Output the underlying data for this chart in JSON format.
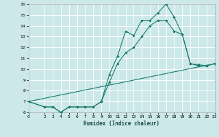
{
  "xlabel": "Humidex (Indice chaleur)",
  "background_color": "#cce8e8",
  "grid_color": "#ffffff",
  "line_color": "#1a7a6e",
  "xlim": [
    0,
    23
  ],
  "ylim": [
    6,
    16
  ],
  "xticks": [
    0,
    2,
    3,
    4,
    5,
    6,
    7,
    8,
    9,
    10,
    11,
    12,
    13,
    14,
    15,
    16,
    17,
    18,
    19,
    20,
    21,
    22,
    23
  ],
  "yticks": [
    6,
    7,
    8,
    9,
    10,
    11,
    12,
    13,
    14,
    15,
    16
  ],
  "series1_x": [
    0,
    2,
    3,
    4,
    5,
    6,
    7,
    8,
    9,
    10,
    11,
    12,
    13,
    14,
    15,
    16,
    17,
    18,
    19,
    20,
    21,
    22,
    23
  ],
  "series1_y": [
    7.0,
    6.5,
    6.5,
    6.0,
    6.5,
    6.5,
    6.5,
    6.5,
    7.0,
    9.5,
    11.2,
    13.5,
    13.1,
    14.5,
    14.5,
    15.2,
    16.0,
    14.8,
    13.2,
    10.5,
    10.4,
    10.3,
    10.5
  ],
  "series2_x": [
    0,
    2,
    3,
    4,
    5,
    6,
    7,
    8,
    9,
    10,
    11,
    12,
    13,
    14,
    15,
    16,
    17,
    18,
    19,
    20,
    21,
    22,
    23
  ],
  "series2_y": [
    7.0,
    6.5,
    6.5,
    6.0,
    6.5,
    6.5,
    6.5,
    6.5,
    7.0,
    8.8,
    10.5,
    11.5,
    12.0,
    13.0,
    14.0,
    14.5,
    14.5,
    13.5,
    13.2,
    10.5,
    10.3,
    10.3,
    10.5
  ],
  "series3_x": [
    0,
    23
  ],
  "series3_y": [
    7.0,
    10.5
  ]
}
